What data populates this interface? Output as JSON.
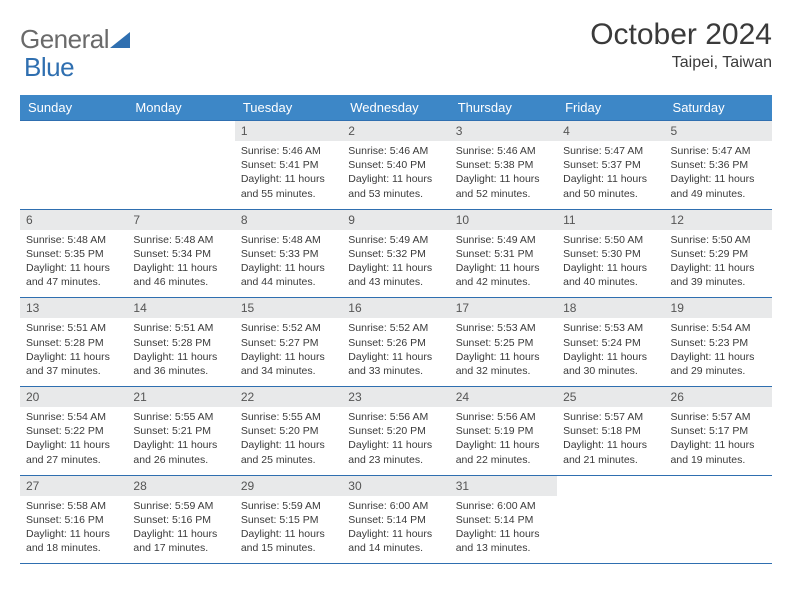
{
  "brand": {
    "part1": "General",
    "part2": "Blue"
  },
  "title": "October 2024",
  "location": "Taipei, Taiwan",
  "colors": {
    "header_bg": "#3d87c7",
    "header_text": "#ffffff",
    "daynum_bg": "#e8e9ea",
    "rule": "#2f6fb0",
    "logo_gray": "#6a6a6a",
    "logo_blue": "#2f6fb0"
  },
  "weekdays": [
    "Sunday",
    "Monday",
    "Tuesday",
    "Wednesday",
    "Thursday",
    "Friday",
    "Saturday"
  ],
  "weeks": [
    [
      null,
      null,
      {
        "n": "1",
        "sr": "Sunrise: 5:46 AM",
        "ss": "Sunset: 5:41 PM",
        "dl": "Daylight: 11 hours and 55 minutes."
      },
      {
        "n": "2",
        "sr": "Sunrise: 5:46 AM",
        "ss": "Sunset: 5:40 PM",
        "dl": "Daylight: 11 hours and 53 minutes."
      },
      {
        "n": "3",
        "sr": "Sunrise: 5:46 AM",
        "ss": "Sunset: 5:38 PM",
        "dl": "Daylight: 11 hours and 52 minutes."
      },
      {
        "n": "4",
        "sr": "Sunrise: 5:47 AM",
        "ss": "Sunset: 5:37 PM",
        "dl": "Daylight: 11 hours and 50 minutes."
      },
      {
        "n": "5",
        "sr": "Sunrise: 5:47 AM",
        "ss": "Sunset: 5:36 PM",
        "dl": "Daylight: 11 hours and 49 minutes."
      }
    ],
    [
      {
        "n": "6",
        "sr": "Sunrise: 5:48 AM",
        "ss": "Sunset: 5:35 PM",
        "dl": "Daylight: 11 hours and 47 minutes."
      },
      {
        "n": "7",
        "sr": "Sunrise: 5:48 AM",
        "ss": "Sunset: 5:34 PM",
        "dl": "Daylight: 11 hours and 46 minutes."
      },
      {
        "n": "8",
        "sr": "Sunrise: 5:48 AM",
        "ss": "Sunset: 5:33 PM",
        "dl": "Daylight: 11 hours and 44 minutes."
      },
      {
        "n": "9",
        "sr": "Sunrise: 5:49 AM",
        "ss": "Sunset: 5:32 PM",
        "dl": "Daylight: 11 hours and 43 minutes."
      },
      {
        "n": "10",
        "sr": "Sunrise: 5:49 AM",
        "ss": "Sunset: 5:31 PM",
        "dl": "Daylight: 11 hours and 42 minutes."
      },
      {
        "n": "11",
        "sr": "Sunrise: 5:50 AM",
        "ss": "Sunset: 5:30 PM",
        "dl": "Daylight: 11 hours and 40 minutes."
      },
      {
        "n": "12",
        "sr": "Sunrise: 5:50 AM",
        "ss": "Sunset: 5:29 PM",
        "dl": "Daylight: 11 hours and 39 minutes."
      }
    ],
    [
      {
        "n": "13",
        "sr": "Sunrise: 5:51 AM",
        "ss": "Sunset: 5:28 PM",
        "dl": "Daylight: 11 hours and 37 minutes."
      },
      {
        "n": "14",
        "sr": "Sunrise: 5:51 AM",
        "ss": "Sunset: 5:28 PM",
        "dl": "Daylight: 11 hours and 36 minutes."
      },
      {
        "n": "15",
        "sr": "Sunrise: 5:52 AM",
        "ss": "Sunset: 5:27 PM",
        "dl": "Daylight: 11 hours and 34 minutes."
      },
      {
        "n": "16",
        "sr": "Sunrise: 5:52 AM",
        "ss": "Sunset: 5:26 PM",
        "dl": "Daylight: 11 hours and 33 minutes."
      },
      {
        "n": "17",
        "sr": "Sunrise: 5:53 AM",
        "ss": "Sunset: 5:25 PM",
        "dl": "Daylight: 11 hours and 32 minutes."
      },
      {
        "n": "18",
        "sr": "Sunrise: 5:53 AM",
        "ss": "Sunset: 5:24 PM",
        "dl": "Daylight: 11 hours and 30 minutes."
      },
      {
        "n": "19",
        "sr": "Sunrise: 5:54 AM",
        "ss": "Sunset: 5:23 PM",
        "dl": "Daylight: 11 hours and 29 minutes."
      }
    ],
    [
      {
        "n": "20",
        "sr": "Sunrise: 5:54 AM",
        "ss": "Sunset: 5:22 PM",
        "dl": "Daylight: 11 hours and 27 minutes."
      },
      {
        "n": "21",
        "sr": "Sunrise: 5:55 AM",
        "ss": "Sunset: 5:21 PM",
        "dl": "Daylight: 11 hours and 26 minutes."
      },
      {
        "n": "22",
        "sr": "Sunrise: 5:55 AM",
        "ss": "Sunset: 5:20 PM",
        "dl": "Daylight: 11 hours and 25 minutes."
      },
      {
        "n": "23",
        "sr": "Sunrise: 5:56 AM",
        "ss": "Sunset: 5:20 PM",
        "dl": "Daylight: 11 hours and 23 minutes."
      },
      {
        "n": "24",
        "sr": "Sunrise: 5:56 AM",
        "ss": "Sunset: 5:19 PM",
        "dl": "Daylight: 11 hours and 22 minutes."
      },
      {
        "n": "25",
        "sr": "Sunrise: 5:57 AM",
        "ss": "Sunset: 5:18 PM",
        "dl": "Daylight: 11 hours and 21 minutes."
      },
      {
        "n": "26",
        "sr": "Sunrise: 5:57 AM",
        "ss": "Sunset: 5:17 PM",
        "dl": "Daylight: 11 hours and 19 minutes."
      }
    ],
    [
      {
        "n": "27",
        "sr": "Sunrise: 5:58 AM",
        "ss": "Sunset: 5:16 PM",
        "dl": "Daylight: 11 hours and 18 minutes."
      },
      {
        "n": "28",
        "sr": "Sunrise: 5:59 AM",
        "ss": "Sunset: 5:16 PM",
        "dl": "Daylight: 11 hours and 17 minutes."
      },
      {
        "n": "29",
        "sr": "Sunrise: 5:59 AM",
        "ss": "Sunset: 5:15 PM",
        "dl": "Daylight: 11 hours and 15 minutes."
      },
      {
        "n": "30",
        "sr": "Sunrise: 6:00 AM",
        "ss": "Sunset: 5:14 PM",
        "dl": "Daylight: 11 hours and 14 minutes."
      },
      {
        "n": "31",
        "sr": "Sunrise: 6:00 AM",
        "ss": "Sunset: 5:14 PM",
        "dl": "Daylight: 11 hours and 13 minutes."
      },
      null,
      null
    ]
  ]
}
